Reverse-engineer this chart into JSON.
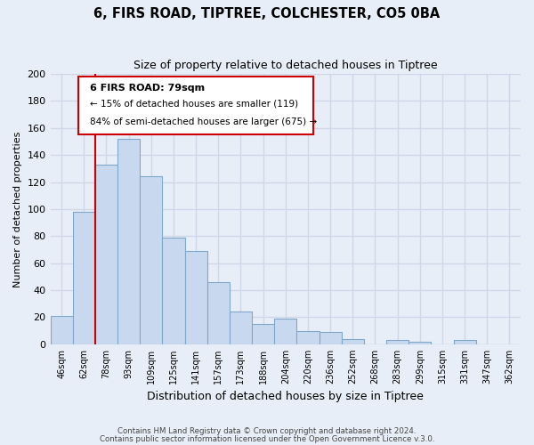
{
  "title": "6, FIRS ROAD, TIPTREE, COLCHESTER, CO5 0BA",
  "subtitle": "Size of property relative to detached houses in Tiptree",
  "xlabel": "Distribution of detached houses by size in Tiptree",
  "ylabel": "Number of detached properties",
  "bar_labels": [
    "46sqm",
    "62sqm",
    "78sqm",
    "93sqm",
    "109sqm",
    "125sqm",
    "141sqm",
    "157sqm",
    "173sqm",
    "188sqm",
    "204sqm",
    "220sqm",
    "236sqm",
    "252sqm",
    "268sqm",
    "283sqm",
    "299sqm",
    "315sqm",
    "331sqm",
    "347sqm",
    "362sqm"
  ],
  "bar_values": [
    21,
    98,
    133,
    152,
    124,
    79,
    69,
    46,
    24,
    15,
    19,
    10,
    9,
    4,
    0,
    3,
    2,
    0,
    3,
    0,
    0
  ],
  "bar_color": "#c8d8ee",
  "bar_edge_color": "#7fa8cc",
  "marker_index": 2,
  "marker_color": "#cc0000",
  "ylim": [
    0,
    200
  ],
  "yticks": [
    0,
    20,
    40,
    60,
    80,
    100,
    120,
    140,
    160,
    180,
    200
  ],
  "annotation_title": "6 FIRS ROAD: 79sqm",
  "annotation_line1": "← 15% of detached houses are smaller (119)",
  "annotation_line2": "84% of semi-detached houses are larger (675) →",
  "footer1": "Contains HM Land Registry data © Crown copyright and database right 2024.",
  "footer2": "Contains public sector information licensed under the Open Government Licence v.3.0.",
  "background_color": "#e8eef7",
  "plot_bg_color": "#e8eef7",
  "grid_color": "#d0d8e8",
  "box_color": "#cc0000"
}
